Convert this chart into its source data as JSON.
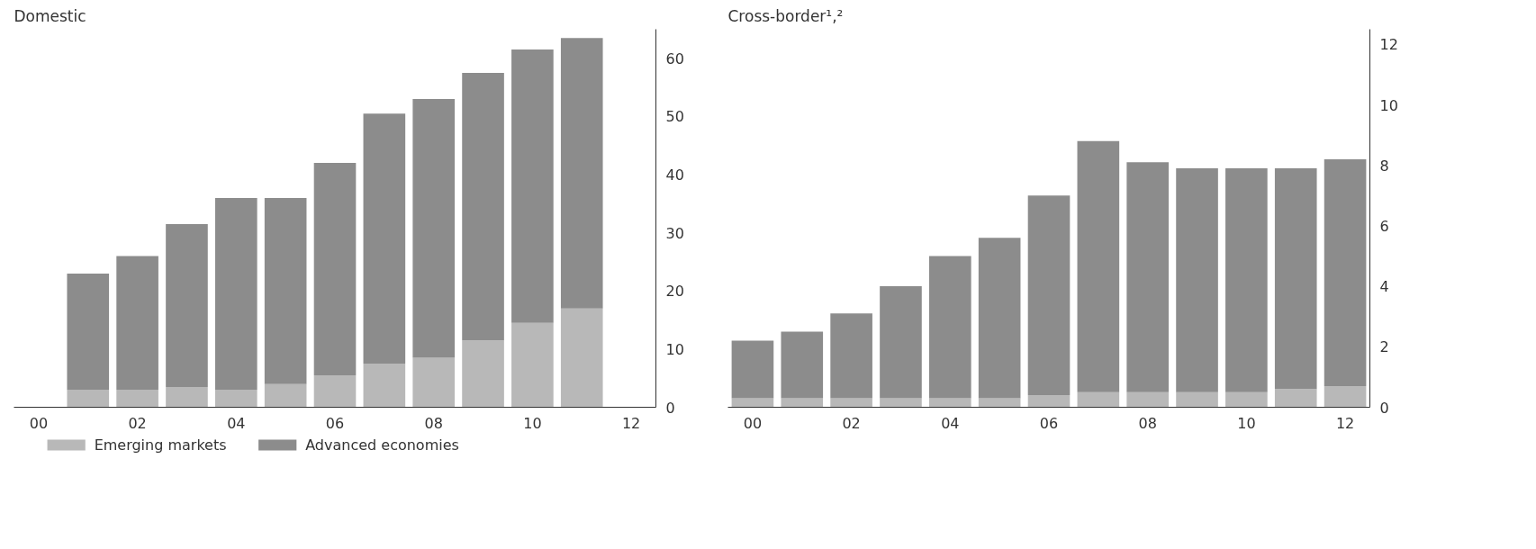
{
  "chart_data": [
    {
      "type": "bar",
      "title": "Domestic",
      "stacked": true,
      "legend": "bottom left",
      "grid": false,
      "categories": [
        "00",
        null,
        "02",
        null,
        "04",
        null,
        "06",
        null,
        "08",
        null,
        "10",
        null,
        "12"
      ],
      "series": [
        {
          "name": "Emerging markets",
          "color": "#b8b8b8",
          "values": [
            null,
            3,
            3,
            3.5,
            3,
            4,
            5.5,
            7.5,
            8.5,
            11.5,
            14.5,
            17,
            null
          ]
        },
        {
          "name": "Advanced economies",
          "color": "#8c8c8c",
          "values": [
            null,
            20,
            23,
            28,
            33,
            32,
            36.5,
            43,
            44.5,
            46,
            47,
            46.5,
            null
          ]
        }
      ],
      "ylim": [
        0,
        65
      ],
      "yticks": [
        0,
        10,
        20,
        30,
        40,
        50,
        60
      ]
    },
    {
      "type": "bar",
      "title": "Cross-border¹,²",
      "stacked": true,
      "grid": false,
      "categories": [
        "00",
        null,
        "02",
        null,
        "04",
        null,
        "06",
        null,
        "08",
        null,
        "10",
        null,
        "12"
      ],
      "series": [
        {
          "color": "#b8b8b8",
          "values": [
            0.3,
            0.3,
            0.3,
            0.3,
            0.3,
            0.3,
            0.4,
            0.5,
            0.5,
            0.5,
            0.5,
            0.6,
            0.7
          ]
        },
        {
          "color": "#8c8c8c",
          "values": [
            1.9,
            2.2,
            2.8,
            3.7,
            4.7,
            5.3,
            6.6,
            8.3,
            7.6,
            7.4,
            7.4,
            7.3,
            7.5
          ]
        }
      ],
      "ylim": [
        0,
        12.5
      ],
      "yticks": [
        0,
        2,
        4,
        6,
        8,
        10,
        12
      ]
    }
  ]
}
